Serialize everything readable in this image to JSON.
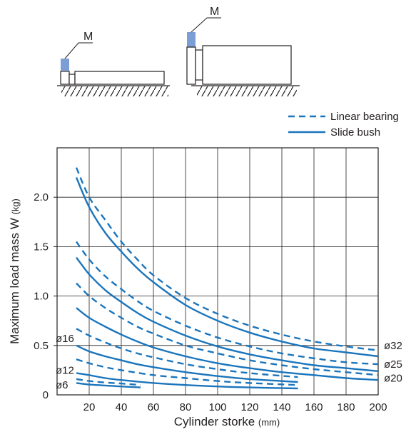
{
  "diagrams": {
    "left_mass_label": "M",
    "right_mass_label": "M",
    "mass_color": "#7b9fd4"
  },
  "chart_data": {
    "type": "line",
    "title": "",
    "xlabel": "Cylinder storke",
    "xlabel_unit": "(mm)",
    "ylabel": "Maximum load mass W",
    "ylabel_unit": "(kg)",
    "xlim": [
      0,
      200
    ],
    "ylim": [
      0,
      2.5
    ],
    "xticks": [
      20,
      40,
      60,
      80,
      100,
      120,
      140,
      160,
      180,
      200
    ],
    "yticks": [
      0,
      0.5,
      1.0,
      1.5,
      2.0
    ],
    "ytick_labels": [
      "0",
      "0.5",
      "1.0",
      "1.5",
      "2.0"
    ],
    "grid": true,
    "line_color": "#1a75bc",
    "legend": {
      "position": "top-right",
      "entries": [
        {
          "label": "Linear bearing",
          "style": "dashed"
        },
        {
          "label": "Slide bush",
          "style": "solid"
        }
      ]
    },
    "series_labels": [
      {
        "text": "ø32",
        "side": "right",
        "value": 0.5
      },
      {
        "text": "ø25",
        "side": "right",
        "value": 0.31
      },
      {
        "text": "ø20",
        "side": "right",
        "value": 0.17
      },
      {
        "text": "ø16",
        "side": "left",
        "value": 0.57
      },
      {
        "text": "ø12",
        "side": "left",
        "value": 0.25
      },
      {
        "text": "ø6",
        "side": "left",
        "value": 0.1
      }
    ],
    "series": [
      {
        "style": "dashed",
        "x": [
          12,
          20,
          30,
          40,
          50,
          60,
          80,
          100,
          120,
          140,
          160,
          180,
          200
        ],
        "y": [
          2.3,
          2.0,
          1.77,
          1.55,
          1.37,
          1.21,
          0.98,
          0.82,
          0.7,
          0.61,
          0.54,
          0.49,
          0.45
        ]
      },
      {
        "style": "solid",
        "x": [
          12,
          20,
          30,
          40,
          50,
          60,
          80,
          100,
          120,
          140,
          160,
          180,
          200
        ],
        "y": [
          2.2,
          1.9,
          1.64,
          1.45,
          1.28,
          1.14,
          0.91,
          0.75,
          0.63,
          0.54,
          0.47,
          0.43,
          0.39
        ]
      },
      {
        "style": "dashed",
        "x": [
          12,
          20,
          30,
          40,
          50,
          60,
          80,
          100,
          120,
          140,
          160,
          180,
          200
        ],
        "y": [
          1.55,
          1.37,
          1.2,
          1.07,
          0.95,
          0.85,
          0.7,
          0.58,
          0.49,
          0.42,
          0.37,
          0.33,
          0.31
        ]
      },
      {
        "style": "solid",
        "x": [
          12,
          20,
          30,
          40,
          50,
          60,
          80,
          100,
          120,
          140,
          160,
          180,
          200
        ],
        "y": [
          1.39,
          1.22,
          1.06,
          0.94,
          0.83,
          0.74,
          0.6,
          0.49,
          0.41,
          0.35,
          0.3,
          0.27,
          0.24
        ]
      },
      {
        "style": "dashed",
        "x": [
          12,
          20,
          30,
          40,
          50,
          60,
          80,
          100,
          120,
          140,
          160,
          180,
          200
        ],
        "y": [
          1.13,
          1.0,
          0.88,
          0.78,
          0.69,
          0.62,
          0.5,
          0.42,
          0.35,
          0.3,
          0.26,
          0.23,
          0.2
        ]
      },
      {
        "style": "solid",
        "x": [
          12,
          20,
          30,
          40,
          50,
          60,
          80,
          100,
          120,
          140,
          160,
          180,
          200
        ],
        "y": [
          0.88,
          0.78,
          0.69,
          0.61,
          0.54,
          0.48,
          0.39,
          0.32,
          0.27,
          0.23,
          0.2,
          0.17,
          0.15
        ]
      },
      {
        "style": "dashed",
        "x": [
          12,
          20,
          30,
          40,
          50,
          60,
          80,
          100,
          120,
          150
        ],
        "y": [
          0.67,
          0.6,
          0.53,
          0.47,
          0.42,
          0.38,
          0.31,
          0.26,
          0.22,
          0.18
        ]
      },
      {
        "style": "solid",
        "x": [
          12,
          20,
          30,
          40,
          50,
          60,
          80,
          100,
          120,
          150
        ],
        "y": [
          0.5,
          0.44,
          0.39,
          0.35,
          0.31,
          0.28,
          0.23,
          0.19,
          0.16,
          0.13
        ]
      },
      {
        "style": "dashed",
        "x": [
          12,
          20,
          30,
          40,
          60,
          80,
          100,
          120,
          150
        ],
        "y": [
          0.36,
          0.32,
          0.28,
          0.25,
          0.2,
          0.17,
          0.14,
          0.12,
          0.1
        ]
      },
      {
        "style": "solid",
        "x": [
          12,
          20,
          30,
          40,
          60,
          80,
          100,
          120,
          150
        ],
        "y": [
          0.22,
          0.2,
          0.17,
          0.15,
          0.12,
          0.1,
          0.085,
          0.075,
          0.065
        ]
      },
      {
        "style": "dashed",
        "x": [
          12,
          20,
          30,
          40,
          52
        ],
        "y": [
          0.16,
          0.14,
          0.125,
          0.115,
          0.1
        ]
      },
      {
        "style": "solid",
        "x": [
          12,
          20,
          30,
          40,
          52
        ],
        "y": [
          0.12,
          0.105,
          0.095,
          0.085,
          0.075
        ]
      }
    ]
  }
}
